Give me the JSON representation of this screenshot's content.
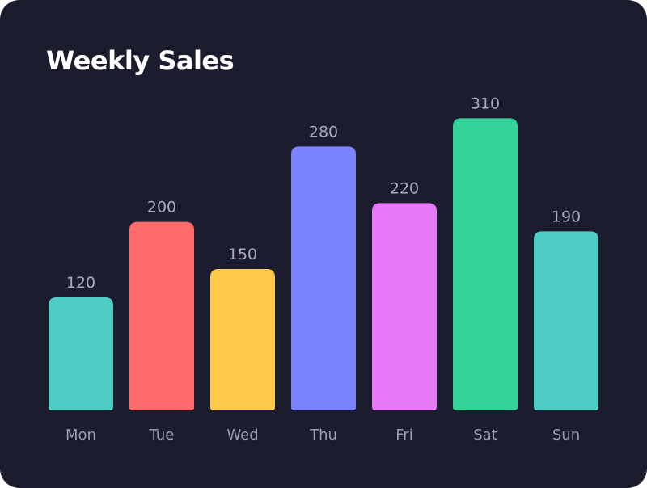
{
  "chart_data": {
    "type": "bar",
    "title": "Weekly Sales",
    "categories": [
      "Mon",
      "Tue",
      "Wed",
      "Thu",
      "Fri",
      "Sat",
      "Sun"
    ],
    "values": [
      120,
      200,
      150,
      280,
      220,
      310,
      190
    ],
    "colors": [
      "#4ecdc4",
      "#ff6b6b",
      "#ffc94a",
      "#7c83ff",
      "#e879f9",
      "#34d399",
      "#4ecdc4"
    ],
    "background": "#1b1c2e",
    "grid": false,
    "ylim": [
      0,
      310
    ]
  }
}
